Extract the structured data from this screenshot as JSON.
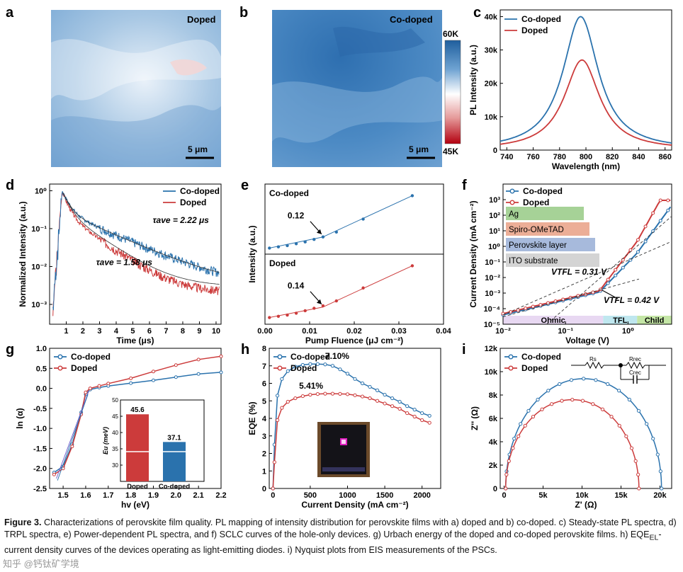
{
  "panels": {
    "a": {
      "letter": "a",
      "label": "Doped",
      "scale": "5 μm"
    },
    "b": {
      "letter": "b",
      "label": "Co-doped",
      "scale": "5 μm"
    },
    "colorbar": {
      "max": "60K",
      "min": "45K",
      "colors": [
        "#1f5f9e",
        "#6fa3d2",
        "#ffffff",
        "#e59a9a",
        "#b3000f"
      ]
    }
  },
  "caption": {
    "lead": "Figure 3.",
    "text": "Characterizations of perovskite film quality. PL mapping of intensity distribution for perovskite films with a) doped and b) co-doped. c) Steady-state PL spectra, d) TRPL spectra, e) Power-dependent PL spectra, and f) SCLC curves of the hole-only devices. g) Urbach energy of the doped and co-doped perovskite films. h) EQE",
    "sub": "EL",
    "tail": "-current density curves of the devices operating as light-emitting diodes. i) Nyquist plots from EIS measurements of the PSCs."
  },
  "watermark": "知乎 @钙钛矿学境",
  "colors": {
    "codoped": "#2a72ad",
    "doped": "#cc3b3b"
  },
  "chart_data": [
    {
      "id": "c",
      "letter": "c",
      "type": "line",
      "xlabel": "Wavelength (nm)",
      "ylabel": "PL Intensity (a.u.)",
      "xlim": [
        735,
        865
      ],
      "ylim": [
        0,
        42000
      ],
      "xticks": [
        740,
        760,
        780,
        800,
        820,
        840,
        860
      ],
      "yticks": [
        0,
        10000,
        20000,
        30000,
        40000
      ],
      "yticklabels": [
        "0",
        "10k",
        "20k",
        "30k",
        "40k"
      ],
      "legend": "top-left",
      "series": [
        {
          "name": "Co-doped",
          "peak": 796,
          "amp": 40000,
          "width": 19
        },
        {
          "name": "Doped",
          "peak": 797,
          "amp": 27000,
          "width": 19
        }
      ]
    },
    {
      "id": "d",
      "letter": "d",
      "type": "line",
      "xlabel": "Time (μs)",
      "ylabel": "Normalized Intensity (a.u.)",
      "xlim": [
        0,
        10.3
      ],
      "ylim": [
        0.0003,
        1.5
      ],
      "yscale": "log",
      "xticks": [
        1,
        2,
        3,
        4,
        5,
        6,
        7,
        8,
        9,
        10
      ],
      "yticks": [
        0.001,
        0.01,
        0.1,
        1
      ],
      "yticklabels": [
        "10⁻³",
        "10⁻²",
        "10⁻¹",
        "10⁰"
      ],
      "legend": "top-right",
      "annotations": [
        {
          "text": "τave = 2.22 μs",
          "x": 6.2,
          "y": 0.14
        },
        {
          "text": "τave = 1.58 μs",
          "x": 2.8,
          "y": 0.011
        }
      ],
      "series": [
        {
          "name": "Co-doped",
          "t_ave": 2.22
        },
        {
          "name": "Doped",
          "t_ave": 1.58
        }
      ]
    },
    {
      "id": "e",
      "letter": "e",
      "type": "scatter",
      "xlabel": "Pump Fluence (μJ cm⁻²)",
      "ylabel": "Intensity (a.u.)",
      "xlim": [
        0,
        0.04
      ],
      "xticks": [
        0,
        0.01,
        0.02,
        0.03,
        0.04
      ],
      "xticklabels": [
        "0.00",
        "0.01",
        "0.02",
        "0.03",
        "0.04"
      ],
      "subpanels": [
        {
          "name": "Co-doped",
          "threshold": 0.12,
          "x": [
            0.001,
            0.003,
            0.005,
            0.007,
            0.009,
            0.011,
            0.013,
            0.016,
            0.022,
            0.033
          ],
          "y": [
            0.03,
            0.05,
            0.07,
            0.1,
            0.13,
            0.17,
            0.21,
            0.29,
            0.5,
            0.88
          ]
        },
        {
          "name": "Doped",
          "threshold": 0.14,
          "x": [
            0.001,
            0.003,
            0.005,
            0.007,
            0.009,
            0.011,
            0.013,
            0.016,
            0.022,
            0.033
          ],
          "y": [
            0.04,
            0.06,
            0.08,
            0.11,
            0.15,
            0.19,
            0.23,
            0.31,
            0.52,
            0.88
          ]
        }
      ]
    },
    {
      "id": "f",
      "letter": "f",
      "type": "line",
      "xlabel": "Voltage (V)",
      "ylabel": "Current Density (mA cm⁻²)",
      "xscale": "log",
      "yscale": "log",
      "xlim": [
        0.01,
        5
      ],
      "ylim": [
        1e-05,
        10000
      ],
      "xticks": [
        0.01,
        0.1,
        1
      ],
      "xticklabels": [
        "10⁻²",
        "10⁻¹",
        "10⁰"
      ],
      "yticks": [
        1e-05,
        0.0001,
        0.001,
        0.01,
        0.1,
        1,
        10,
        100,
        1000
      ],
      "yticklabels": [
        "10⁻⁵",
        "10⁻⁴",
        "10⁻³",
        "10⁻²",
        "10⁻¹",
        "10⁰",
        "10¹",
        "10²",
        "10³"
      ],
      "legend": "top-left",
      "layers": [
        {
          "name": "Ag",
          "color": "#9ccd8c"
        },
        {
          "name": "Spiro-OMeTAD",
          "color": "#eaa58c"
        },
        {
          "name": "Perovskite layer",
          "color": "#9db3d8"
        },
        {
          "name": "ITO substrate",
          "color": "#cfcfcf"
        }
      ],
      "regions": [
        {
          "name": "Ohmic",
          "from": 0.01,
          "to": 0.4,
          "color": "#e8d8f2"
        },
        {
          "name": "TFL",
          "from": 0.4,
          "to": 1.4,
          "color": "#bfe7ef"
        },
        {
          "name": "Child",
          "from": 1.4,
          "to": 5,
          "color": "#c4e6a6"
        }
      ],
      "annotations": [
        {
          "text": "VTFL = 0.31 V"
        },
        {
          "text": "VTFL = 0.42 V"
        }
      ],
      "series": [
        {
          "name": "Co-doped",
          "vtfl": 0.42
        },
        {
          "name": "Doped",
          "vtfl": 0.31
        }
      ]
    },
    {
      "id": "g",
      "letter": "g",
      "type": "line",
      "xlabel": "hv (eV)",
      "ylabel": "ln (α)",
      "xlim": [
        1.44,
        2.2
      ],
      "ylim": [
        -2.5,
        1.0
      ],
      "xticks": [
        1.5,
        1.6,
        1.7,
        1.8,
        1.9,
        2.0,
        2.1,
        2.2
      ],
      "xticklabels": [
        "1.5",
        "1.6",
        "1.7",
        "1.8",
        "1.9",
        "2.0",
        "2.1",
        "2.2"
      ],
      "yticks": [
        -2.5,
        -2.0,
        -1.5,
        -1.0,
        -0.5,
        0.0,
        0.5,
        1.0
      ],
      "yticklabels": [
        "-2.5",
        "-2.0",
        "-1.5",
        "-1.0",
        "-0.5",
        "0.0",
        "0.5",
        "1.0"
      ],
      "legend": "top-left",
      "series": [
        {
          "name": "Co-doped",
          "x": [
            1.46,
            1.5,
            1.54,
            1.58,
            1.6,
            1.62,
            1.66,
            1.7,
            1.8,
            1.9,
            2.0,
            2.1,
            2.2
          ],
          "y": [
            -2.1,
            -1.95,
            -1.4,
            -0.6,
            -0.15,
            -0.03,
            0.02,
            0.06,
            0.13,
            0.2,
            0.28,
            0.36,
            0.4
          ]
        },
        {
          "name": "Doped",
          "x": [
            1.46,
            1.5,
            1.54,
            1.58,
            1.6,
            1.62,
            1.66,
            1.7,
            1.8,
            1.9,
            2.0,
            2.1,
            2.2
          ],
          "y": [
            -2.15,
            -2.0,
            -1.45,
            -0.65,
            -0.1,
            0.0,
            0.06,
            0.12,
            0.25,
            0.42,
            0.58,
            0.72,
            0.8
          ]
        }
      ],
      "inset": {
        "type": "bar",
        "ylabel": "Eu (meV)",
        "categories": [
          "Doped",
          "Co-doped"
        ],
        "values": [
          45.6,
          37.1
        ],
        "ylim": [
          0,
          50
        ],
        "yticks": [
          30,
          35,
          40,
          45,
          50
        ]
      }
    },
    {
      "id": "h",
      "letter": "h",
      "type": "line",
      "xlabel": "Current Density (mA cm⁻²)",
      "ylabel": "EQE (%)",
      "xlim": [
        -50,
        2250
      ],
      "ylim": [
        0,
        8
      ],
      "xticks": [
        0,
        500,
        1000,
        1500,
        2000
      ],
      "yticks": [
        0,
        1,
        2,
        3,
        4,
        5,
        6,
        7,
        8
      ],
      "legend": "top-left",
      "series": [
        {
          "name": "Co-doped",
          "peak_label": "7.10%",
          "x": [
            0,
            20,
            60,
            120,
            200,
            300,
            400,
            500,
            600,
            700,
            800,
            900,
            1000,
            1100,
            1200,
            1300,
            1400,
            1500,
            1600,
            1700,
            1800,
            1900,
            2000,
            2100
          ],
          "y": [
            0,
            2.5,
            5.3,
            6.25,
            6.7,
            6.95,
            7.05,
            7.1,
            7.1,
            7.08,
            7.0,
            6.8,
            6.55,
            6.25,
            6.0,
            5.8,
            5.6,
            5.35,
            5.15,
            4.95,
            4.7,
            4.5,
            4.3,
            4.15
          ]
        },
        {
          "name": "Doped",
          "peak_label": "5.41%",
          "x": [
            0,
            20,
            60,
            120,
            200,
            300,
            400,
            500,
            600,
            700,
            800,
            900,
            1000,
            1100,
            1200,
            1300,
            1400,
            1500,
            1600,
            1700,
            1800,
            1900,
            2000,
            2100
          ],
          "y": [
            0,
            1.5,
            3.9,
            4.6,
            4.95,
            5.15,
            5.27,
            5.35,
            5.39,
            5.41,
            5.41,
            5.4,
            5.38,
            5.32,
            5.25,
            5.15,
            5.0,
            4.85,
            4.7,
            4.55,
            4.3,
            4.1,
            3.9,
            3.75
          ]
        }
      ]
    },
    {
      "id": "i",
      "letter": "i",
      "type": "scatter",
      "xlabel": "Z' (Ω)",
      "ylabel": "Z'' (Ω)",
      "xlim": [
        -500,
        21500
      ],
      "ylim": [
        0,
        12000
      ],
      "xticks": [
        0,
        5000,
        10000,
        15000,
        20000
      ],
      "xticklabels": [
        "0",
        "5k",
        "10k",
        "15k",
        "20k"
      ],
      "yticks": [
        0,
        2000,
        4000,
        6000,
        8000,
        10000,
        12000
      ],
      "yticklabels": [
        "0",
        "2k",
        "4k",
        "6k",
        "8k",
        "10k",
        "12k"
      ],
      "legend": "top-left",
      "circuit": {
        "rs": "Rs",
        "rrec": "Rrec",
        "crec": "Crec"
      },
      "series": [
        {
          "name": "Co-doped",
          "r_start": 200,
          "r_end": 20200,
          "height": 9400
        },
        {
          "name": "Doped",
          "r_start": 200,
          "r_end": 17300,
          "height": 7600
        }
      ]
    }
  ]
}
